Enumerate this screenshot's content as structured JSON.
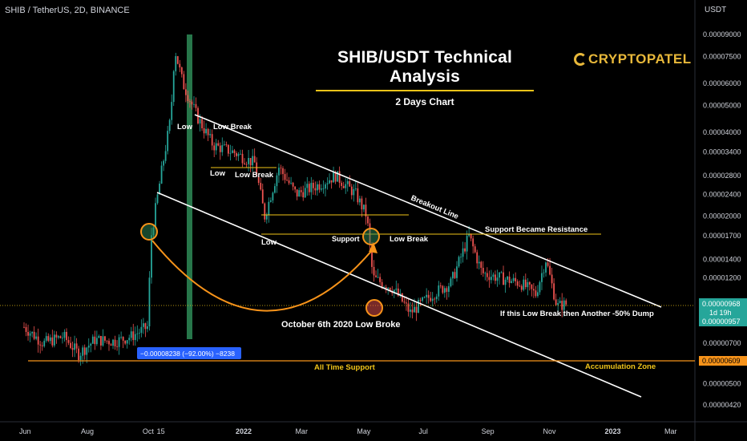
{
  "header": {
    "symbol_line": "SHIB / TetherUS, 2D, BINANCE",
    "axis_unit": "USDT"
  },
  "annotation": {
    "title": "SHIB/USDT Technical Analysis",
    "subtitle": "2 Days Chart",
    "brand": "CRYPTOPATEL",
    "labels": {
      "low1": "Low",
      "low_break1": "Low Break",
      "low2": "Low",
      "low_break2": "Low Break",
      "low3": "Low",
      "support": "Support",
      "low_break3": "Low Break",
      "breakout_line": "Breakout Line",
      "support_resistance": "Support Became Resistance",
      "october": "October 6th 2020 Low Broke",
      "dump": "If this Low Break then Another -50% Dump",
      "all_time_support": "All Time Support",
      "accumulation": "Accumulation Zone",
      "measure": "−0.00008238 (−92.00%) −8238"
    }
  },
  "price_badges": {
    "last": "0.00000968",
    "countdown": "1d 19h",
    "second": "0.00000957",
    "support": "0.00000609"
  },
  "colors": {
    "up": "#26a69a",
    "down": "#ef5350",
    "trend_line": "#ffffff",
    "support_line": "#f0c419",
    "support_badge": "#f7931a",
    "last_badge": "#26a69a",
    "measure_box": "#2962ff",
    "highlight_column": "#2e8b57",
    "arrow": "#f7931a"
  },
  "chart_data": {
    "type": "candlestick",
    "scale": "log",
    "y_ticks": [
      "0.00009000",
      "0.00007500",
      "0.00006000",
      "0.00005000",
      "0.00004000",
      "0.00003400",
      "0.00002800",
      "0.00002400",
      "0.00002000",
      "0.00001700",
      "0.00001400",
      "0.00001200",
      "0.00000968",
      "0.00000700",
      "0.00000609",
      "0.00000500",
      "0.00000420"
    ],
    "x_ticks": [
      "Jun",
      "Aug",
      "Oct",
      "15",
      "2022",
      "Mar",
      "May",
      "Jul",
      "Sep",
      "Nov",
      "2023",
      "Mar"
    ],
    "close_series": [
      {
        "date": "2021-06-01",
        "close": 8e-06
      },
      {
        "date": "2021-06-20",
        "close": 7e-06
      },
      {
        "date": "2021-07-10",
        "close": 7.4e-06
      },
      {
        "date": "2021-07-25",
        "close": 6.4e-06
      },
      {
        "date": "2021-08-10",
        "close": 7.2e-06
      },
      {
        "date": "2021-08-30",
        "close": 7.1e-06
      },
      {
        "date": "2021-09-15",
        "close": 7.4e-06
      },
      {
        "date": "2021-10-01",
        "close": 8e-06
      },
      {
        "date": "2021-10-05",
        "close": 1.72e-05
      },
      {
        "date": "2021-10-15",
        "close": 2.9e-05
      },
      {
        "date": "2021-10-24",
        "close": 4.5e-05
      },
      {
        "date": "2021-10-28",
        "close": 8e-05
      },
      {
        "date": "2021-11-05",
        "close": 6e-05
      },
      {
        "date": "2021-11-20",
        "close": 4.5e-05
      },
      {
        "date": "2021-12-05",
        "close": 3.6e-05
      },
      {
        "date": "2021-12-25",
        "close": 3.4e-05
      },
      {
        "date": "2022-01-15",
        "close": 3.1e-05
      },
      {
        "date": "2022-01-25",
        "close": 2e-05
      },
      {
        "date": "2022-02-08",
        "close": 3e-05
      },
      {
        "date": "2022-02-25",
        "close": 2.4e-05
      },
      {
        "date": "2022-03-20",
        "close": 2.6e-05
      },
      {
        "date": "2022-04-05",
        "close": 2.8e-05
      },
      {
        "date": "2022-04-25",
        "close": 2.4e-05
      },
      {
        "date": "2022-05-06",
        "close": 2e-05
      },
      {
        "date": "2022-05-12",
        "close": 1.2e-05
      },
      {
        "date": "2022-06-01",
        "close": 1.1e-05
      },
      {
        "date": "2022-06-18",
        "close": 9e-06
      },
      {
        "date": "2022-07-10",
        "close": 1.05e-05
      },
      {
        "date": "2022-07-28",
        "close": 1.15e-05
      },
      {
        "date": "2022-08-15",
        "close": 1.7e-05
      },
      {
        "date": "2022-08-28",
        "close": 1.25e-05
      },
      {
        "date": "2022-09-15",
        "close": 1.2e-05
      },
      {
        "date": "2022-10-05",
        "close": 1.15e-05
      },
      {
        "date": "2022-10-20",
        "close": 1.05e-05
      },
      {
        "date": "2022-10-30",
        "close": 1.4e-05
      },
      {
        "date": "2022-11-10",
        "close": 9.5e-06
      },
      {
        "date": "2022-11-20",
        "close": 9.7e-06
      }
    ]
  }
}
